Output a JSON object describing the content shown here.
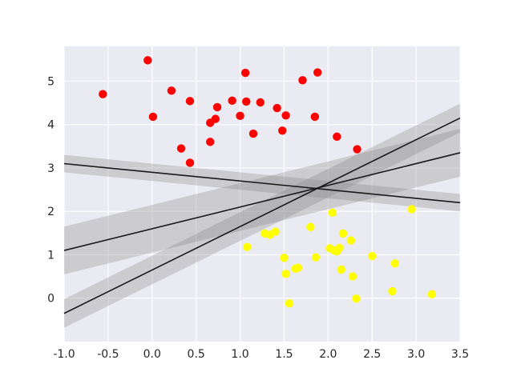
{
  "chart_data": {
    "type": "scatter",
    "title": "",
    "xlabel": "",
    "ylabel": "",
    "xlim": [
      -1.0,
      3.5
    ],
    "ylim": [
      -1.0,
      5.8
    ],
    "grid": true,
    "background_color": "#eaeaf2",
    "grid_color": "#ffffff",
    "x_ticks": [
      "-1.0",
      "-0.5",
      "0.0",
      "0.5",
      "1.0",
      "1.5",
      "2.0",
      "2.5",
      "3.0",
      "3.5"
    ],
    "x_tick_values": [
      -1.0,
      -0.5,
      0.0,
      0.5,
      1.0,
      1.5,
      2.0,
      2.5,
      3.0,
      3.5
    ],
    "y_ticks": [
      "0",
      "1",
      "2",
      "3",
      "4",
      "5"
    ],
    "y_tick_values": [
      0,
      1,
      2,
      3,
      4,
      5
    ],
    "series": [
      {
        "color": "#ff0000",
        "points": [
          [
            -0.05,
            5.48
          ],
          [
            -0.56,
            4.7
          ],
          [
            0.01,
            4.18
          ],
          [
            0.22,
            4.78
          ],
          [
            0.43,
            4.54
          ],
          [
            0.33,
            3.45
          ],
          [
            0.43,
            3.12
          ],
          [
            0.66,
            4.04
          ],
          [
            0.66,
            3.6
          ],
          [
            0.72,
            4.13
          ],
          [
            0.74,
            4.4
          ],
          [
            0.91,
            4.55
          ],
          [
            1.0,
            4.2
          ],
          [
            1.07,
            4.53
          ],
          [
            1.06,
            5.19
          ],
          [
            1.15,
            3.79
          ],
          [
            1.23,
            4.51
          ],
          [
            1.42,
            4.38
          ],
          [
            1.48,
            3.86
          ],
          [
            1.52,
            4.21
          ],
          [
            1.71,
            5.02
          ],
          [
            1.85,
            4.18
          ],
          [
            1.88,
            5.2
          ],
          [
            2.1,
            3.72
          ],
          [
            2.33,
            3.43
          ]
        ]
      },
      {
        "color": "#ffff00",
        "points": [
          [
            1.08,
            1.18
          ],
          [
            1.28,
            1.49
          ],
          [
            1.34,
            1.46
          ],
          [
            1.4,
            1.53
          ],
          [
            1.5,
            0.93
          ],
          [
            1.52,
            0.56
          ],
          [
            1.56,
            -0.12
          ],
          [
            1.63,
            0.68
          ],
          [
            1.66,
            0.7
          ],
          [
            1.8,
            1.64
          ],
          [
            1.86,
            0.94
          ],
          [
            2.02,
            1.15
          ],
          [
            2.05,
            1.97
          ],
          [
            2.07,
            1.1
          ],
          [
            2.1,
            1.08
          ],
          [
            2.13,
            1.16
          ],
          [
            2.15,
            0.66
          ],
          [
            2.17,
            1.49
          ],
          [
            2.26,
            1.33
          ],
          [
            2.28,
            0.5
          ],
          [
            2.32,
            -0.01
          ],
          [
            2.5,
            0.97
          ],
          [
            2.73,
            0.16
          ],
          [
            2.76,
            0.8
          ],
          [
            2.95,
            2.05
          ],
          [
            3.18,
            0.09
          ]
        ]
      }
    ],
    "lines": [
      {
        "color": "#1a1a1a",
        "band_color": "#888888",
        "start": [
          -1.0,
          3.1
        ],
        "end": [
          3.5,
          2.2
        ],
        "band": 0.2
      },
      {
        "color": "#1a1a1a",
        "band_color": "#888888",
        "start": [
          -1.0,
          1.1
        ],
        "end": [
          3.5,
          3.35
        ],
        "band": 0.55
      },
      {
        "color": "#1a1a1a",
        "band_color": "#888888",
        "start": [
          -1.0,
          -0.35
        ],
        "end": [
          3.5,
          4.15
        ],
        "band": 0.33
      }
    ]
  }
}
